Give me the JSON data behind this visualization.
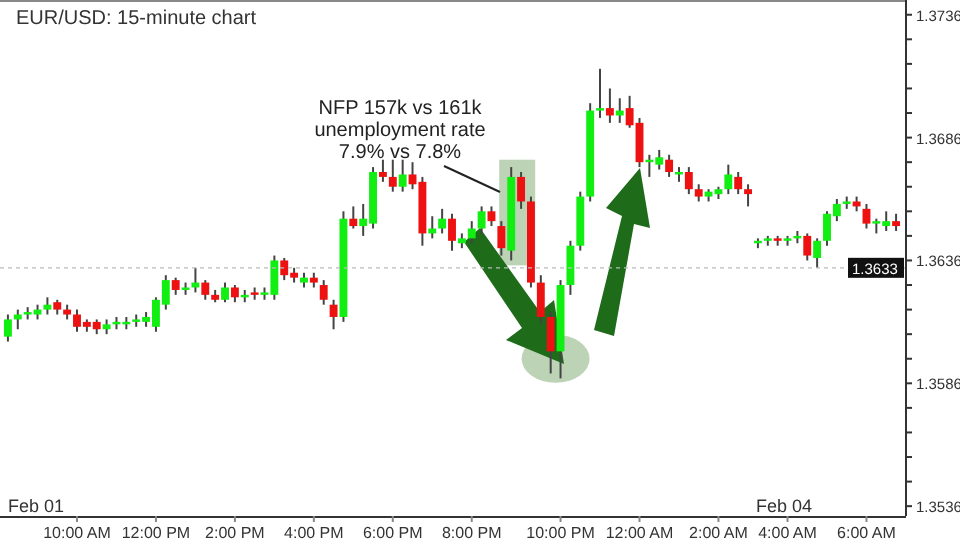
{
  "chart_data": {
    "type": "candlestick",
    "title": "EUR/USD: 15-minute chart",
    "categories": [
      null,
      null,
      null,
      null,
      null,
      null,
      null,
      "10:00 AM",
      null,
      null,
      null,
      null,
      null,
      null,
      null,
      "12:00 PM",
      null,
      null,
      null,
      null,
      null,
      null,
      null,
      "2:00 PM",
      null,
      null,
      null,
      null,
      null,
      null,
      null,
      "4:00 PM",
      null,
      null,
      null,
      null,
      null,
      null,
      null,
      "6:00 PM",
      null,
      null,
      null,
      null,
      null,
      null,
      null,
      "8:00 PM",
      null,
      null,
      null,
      null,
      null,
      null,
      null,
      null,
      "10:00 PM",
      null,
      null,
      null,
      null,
      null,
      null,
      null,
      "12:00 AM",
      null,
      null,
      null,
      null,
      null,
      null,
      null,
      "2:00 AM",
      null,
      null,
      null,
      null,
      null,
      null,
      "4:00 AM",
      null,
      null,
      null,
      null,
      null,
      null,
      null,
      "6:00 AM",
      null,
      null,
      null
    ],
    "ohlc": [
      [
        1.3605,
        1.3614,
        1.3603,
        1.3612
      ],
      [
        1.3612,
        1.3616,
        1.3608,
        1.3614
      ],
      [
        1.3614,
        1.3617,
        1.3612,
        1.3615
      ],
      [
        1.3614,
        1.3618,
        1.3612,
        1.3616
      ],
      [
        1.3616,
        1.3621,
        1.3614,
        1.3618
      ],
      [
        1.3619,
        1.362,
        1.3614,
        1.3616
      ],
      [
        1.3616,
        1.3618,
        1.3612,
        1.3614
      ],
      [
        1.3614,
        1.3616,
        1.3607,
        1.3609
      ],
      [
        1.3611,
        1.3612,
        1.3607,
        1.3609
      ],
      [
        1.3611,
        1.3612,
        1.3606,
        1.3608
      ],
      [
        1.3608,
        1.3612,
        1.3606,
        1.361
      ],
      [
        1.361,
        1.3613,
        1.3608,
        1.3611
      ],
      [
        1.361,
        1.3613,
        1.3608,
        1.3611
      ],
      [
        1.3611,
        1.3614,
        1.3609,
        1.3612
      ],
      [
        1.3611,
        1.3615,
        1.3609,
        1.3613
      ],
      [
        1.3609,
        1.3621,
        1.3607,
        1.362
      ],
      [
        1.3618,
        1.363,
        1.3616,
        1.3628
      ],
      [
        1.3628,
        1.3629,
        1.3622,
        1.3624
      ],
      [
        1.3624,
        1.3627,
        1.3622,
        1.3625
      ],
      [
        1.3625,
        1.3633,
        1.3623,
        1.3627
      ],
      [
        1.3627,
        1.3628,
        1.362,
        1.3622
      ],
      [
        1.3622,
        1.3624,
        1.3619,
        1.362
      ],
      [
        1.362,
        1.3627,
        1.3619,
        1.3625
      ],
      [
        1.3625,
        1.3626,
        1.3619,
        1.3621
      ],
      [
        1.3621,
        1.3624,
        1.3619,
        1.3622
      ],
      [
        1.3623,
        1.3625,
        1.362,
        1.3622
      ],
      [
        1.3622,
        1.3625,
        1.362,
        1.3623
      ],
      [
        1.3622,
        1.3638,
        1.362,
        1.3636
      ],
      [
        1.3636,
        1.3637,
        1.3628,
        1.363
      ],
      [
        1.3631,
        1.3633,
        1.3627,
        1.3629
      ],
      [
        1.3627,
        1.3631,
        1.3625,
        1.3629
      ],
      [
        1.3629,
        1.3631,
        1.3625,
        1.3627
      ],
      [
        1.3626,
        1.3628,
        1.3618,
        1.362
      ],
      [
        1.3618,
        1.362,
        1.3608,
        1.3613
      ],
      [
        1.3613,
        1.3656,
        1.3611,
        1.3653
      ],
      [
        1.3653,
        1.3658,
        1.3649,
        1.365
      ],
      [
        1.365,
        1.3659,
        1.3646,
        1.3653
      ],
      [
        1.3651,
        1.3674,
        1.3649,
        1.3672
      ],
      [
        1.3672,
        1.3677,
        1.3668,
        1.367
      ],
      [
        1.367,
        1.3677,
        1.3664,
        1.3666
      ],
      [
        1.3666,
        1.3677,
        1.3664,
        1.3671
      ],
      [
        1.3671,
        1.3676,
        1.3665,
        1.3667
      ],
      [
        1.3668,
        1.367,
        1.3642,
        1.3647
      ],
      [
        1.3647,
        1.3654,
        1.3645,
        1.3649
      ],
      [
        1.3649,
        1.3657,
        1.3647,
        1.3653
      ],
      [
        1.3653,
        1.3655,
        1.364,
        1.3644
      ],
      [
        1.3643,
        1.3647,
        1.3641,
        1.3645
      ],
      [
        1.3645,
        1.3652,
        1.3643,
        1.3649
      ],
      [
        1.3649,
        1.3658,
        1.3647,
        1.3656
      ],
      [
        1.3656,
        1.3658,
        1.365,
        1.3652
      ],
      [
        1.365,
        1.3652,
        1.3638,
        1.3641
      ],
      [
        1.364,
        1.3674,
        1.3636,
        1.367
      ],
      [
        1.367,
        1.3672,
        1.3657,
        1.366
      ],
      [
        1.366,
        1.3662,
        1.3625,
        1.3627
      ],
      [
        1.3627,
        1.363,
        1.361,
        1.3613
      ],
      [
        1.3613,
        1.3615,
        1.359,
        1.3599
      ],
      [
        1.3599,
        1.3628,
        1.3588,
        1.3626
      ],
      [
        1.3626,
        1.3644,
        1.3622,
        1.3642
      ],
      [
        1.3642,
        1.3664,
        1.364,
        1.3662
      ],
      [
        1.3662,
        1.37,
        1.366,
        1.3697
      ],
      [
        1.3697,
        1.3714,
        1.3694,
        1.3698
      ],
      [
        1.3698,
        1.3706,
        1.3692,
        1.3695
      ],
      [
        1.3695,
        1.3702,
        1.3692,
        1.3697
      ],
      [
        1.3698,
        1.3703,
        1.369,
        1.3691
      ],
      [
        1.3692,
        1.3694,
        1.3674,
        1.3676
      ],
      [
        1.3676,
        1.3679,
        1.367,
        1.3677
      ],
      [
        1.3675,
        1.3681,
        1.3673,
        1.3678
      ],
      [
        1.3677,
        1.3679,
        1.367,
        1.3672
      ],
      [
        1.3671,
        1.3674,
        1.3668,
        1.3672
      ],
      [
        1.3672,
        1.3674,
        1.3663,
        1.3665
      ],
      [
        1.3665,
        1.3667,
        1.366,
        1.3662
      ],
      [
        1.3662,
        1.3665,
        1.366,
        1.3664
      ],
      [
        1.3663,
        1.3666,
        1.3661,
        1.3665
      ],
      [
        1.3665,
        1.3675,
        1.3663,
        1.3671
      ],
      [
        1.367,
        1.3672,
        1.3663,
        1.3665
      ],
      [
        1.3665,
        1.3667,
        1.3658,
        1.3663
      ],
      [
        1.3643,
        1.3645,
        1.3641,
        1.3644
      ],
      [
        1.3644,
        1.3646,
        1.3642,
        1.3645
      ],
      [
        1.3645,
        1.3646,
        1.3642,
        1.3644
      ],
      [
        1.3644,
        1.3646,
        1.3642,
        1.3645
      ],
      [
        1.3645,
        1.3648,
        1.3643,
        1.3646
      ],
      [
        1.3646,
        1.3647,
        1.3636,
        1.3638
      ],
      [
        1.3637,
        1.3645,
        1.3633,
        1.3644
      ],
      [
        1.3644,
        1.3656,
        1.3642,
        1.3655
      ],
      [
        1.3654,
        1.3661,
        1.3652,
        1.3659
      ],
      [
        1.3659,
        1.3662,
        1.3657,
        1.366
      ],
      [
        1.366,
        1.3662,
        1.3656,
        1.3658
      ],
      [
        1.3657,
        1.3659,
        1.3649,
        1.3651
      ],
      [
        1.3651,
        1.3653,
        1.3647,
        1.3652
      ],
      [
        1.365,
        1.3656,
        1.3648,
        1.3652
      ],
      [
        1.3652,
        1.3655,
        1.3648,
        1.365
      ]
    ],
    "colors": [
      "#11ee11",
      "#11ee11",
      "#11ee11",
      "#11ee11",
      "#11ee11",
      "#ee1111",
      "#ee1111",
      "#ee1111",
      "#ee1111",
      "#ee1111",
      "#11ee11",
      "#11ee11",
      "#11ee11",
      "#11ee11",
      "#11ee11",
      "#11ee11",
      "#11ee11",
      "#ee1111",
      "#11ee11",
      "#11ee11",
      "#ee1111",
      "#ee1111",
      "#11ee11",
      "#ee1111",
      "#11ee11",
      "#ee1111",
      "#11ee11",
      "#11ee11",
      "#ee1111",
      "#ee1111",
      "#11ee11",
      "#ee1111",
      "#ee1111",
      "#ee1111",
      "#11ee11",
      "#ee1111",
      "#11ee11",
      "#11ee11",
      "#ee1111",
      "#ee1111",
      "#11ee11",
      "#ee1111",
      "#ee1111",
      "#11ee11",
      "#11ee11",
      "#ee1111",
      "#11ee11",
      "#11ee11",
      "#11ee11",
      "#ee1111",
      "#ee1111",
      "#11ee11",
      "#ee1111",
      "#ee1111",
      "#ee1111",
      "#ee1111",
      "#11ee11",
      "#11ee11",
      "#11ee11",
      "#11ee11",
      "#11ee11",
      "#ee1111",
      "#11ee11",
      "#ee1111",
      "#ee1111",
      "#11ee11",
      "#11ee11",
      "#ee1111",
      "#11ee11",
      "#ee1111",
      "#ee1111",
      "#11ee11",
      "#11ee11",
      "#11ee11",
      "#ee1111",
      "#ee1111",
      "#11ee11",
      "#11ee11",
      "#ee1111",
      "#11ee11",
      "#11ee11",
      "#ee1111",
      "#11ee11",
      "#11ee11",
      "#11ee11",
      "#11ee11",
      "#ee1111",
      "#ee1111",
      "#11ee11",
      "#11ee11",
      "#ee1111"
    ],
    "ylim": [
      1.3532,
      1.3742
    ],
    "yticks": [
      1.3536,
      {
        "value": 1.3546,
        "label": null
      },
      {
        "value": 1.3556,
        "label": null
      },
      {
        "value": 1.3566,
        "label": null
      },
      {
        "value": 1.3576,
        "label": null
      },
      1.3586,
      {
        "value": 1.3596,
        "label": null
      },
      {
        "value": 1.3606,
        "label": null
      },
      {
        "value": 1.3616,
        "label": null
      },
      {
        "value": 1.3626,
        "label": null
      },
      1.3636,
      {
        "value": 1.3646,
        "label": null
      },
      {
        "value": 1.3656,
        "label": null
      },
      {
        "value": 1.3666,
        "label": null
      },
      {
        "value": 1.3676,
        "label": null
      },
      1.3686,
      {
        "value": 1.3696,
        "label": null
      },
      {
        "value": 1.3706,
        "label": null
      },
      {
        "value": 1.3716,
        "label": null
      },
      {
        "value": 1.3726,
        "label": null
      },
      1.3736
    ],
    "ref_lines": [
      {
        "axis": "y",
        "value": 1.3633,
        "label": "1.3633"
      }
    ],
    "annotations": [
      "NFP 157k vs 161k\nunemployment rate\n7.9% vs 7.8%",
      "Feb 01",
      "Feb 04"
    ]
  }
}
